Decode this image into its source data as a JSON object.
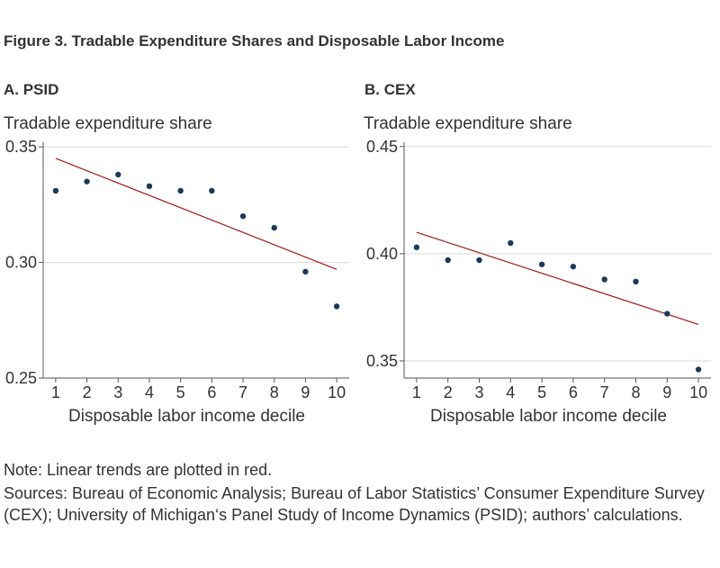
{
  "figure_title": "Figure 3. Tradable Expenditure Shares and Disposable Labor Income",
  "note": "Note: Linear trends are plotted in red.",
  "sources": "Sources: Bureau of Economic Analysis; Bureau of Labor Statistics’ Consumer Expenditure Survey (CEX); University of Michigan‘s Panel Study of Income Dynamics (PSID); authors’ calculations.",
  "colors": {
    "points": "#1a3a5c",
    "trend": "#a01c1c",
    "grid": "#d9d9d9",
    "axis": "#555555"
  },
  "chart_data": [
    {
      "type": "scatter",
      "title": "A. PSID",
      "ylabel": "Tradable expenditure share",
      "xlabel": "Disposable labor income decile",
      "x": [
        1,
        2,
        3,
        4,
        5,
        6,
        7,
        8,
        9,
        10
      ],
      "y": [
        0.331,
        0.335,
        0.338,
        0.333,
        0.331,
        0.331,
        0.32,
        0.315,
        0.296,
        0.281
      ],
      "trend": {
        "x": [
          1,
          10
        ],
        "y": [
          0.345,
          0.297
        ],
        "color": "red"
      },
      "xlim": [
        0.6,
        10.4
      ],
      "ylim": [
        0.25,
        0.352
      ],
      "yticks": [
        0.25,
        0.3,
        0.35
      ],
      "ytick_labels": [
        "0.25",
        "0.30",
        "0.35"
      ],
      "xticks": [
        1,
        2,
        3,
        4,
        5,
        6,
        7,
        8,
        9,
        10
      ],
      "grid": "horizontal"
    },
    {
      "type": "scatter",
      "title": "B. CEX",
      "ylabel": "Tradable expenditure share",
      "xlabel": "Disposable labor income decile",
      "x": [
        1,
        2,
        3,
        4,
        5,
        6,
        7,
        8,
        9,
        10
      ],
      "y": [
        0.403,
        0.397,
        0.397,
        0.405,
        0.395,
        0.394,
        0.388,
        0.387,
        0.372,
        0.346
      ],
      "trend": {
        "x": [
          1,
          10
        ],
        "y": [
          0.41,
          0.367
        ],
        "color": "red"
      },
      "xlim": [
        0.6,
        10.4
      ],
      "ylim": [
        0.342,
        0.452
      ],
      "yticks": [
        0.35,
        0.4,
        0.45
      ],
      "ytick_labels": [
        "0.35",
        "0.40",
        "0.45"
      ],
      "xticks": [
        1,
        2,
        3,
        4,
        5,
        6,
        7,
        8,
        9,
        10
      ],
      "grid": "horizontal"
    }
  ]
}
